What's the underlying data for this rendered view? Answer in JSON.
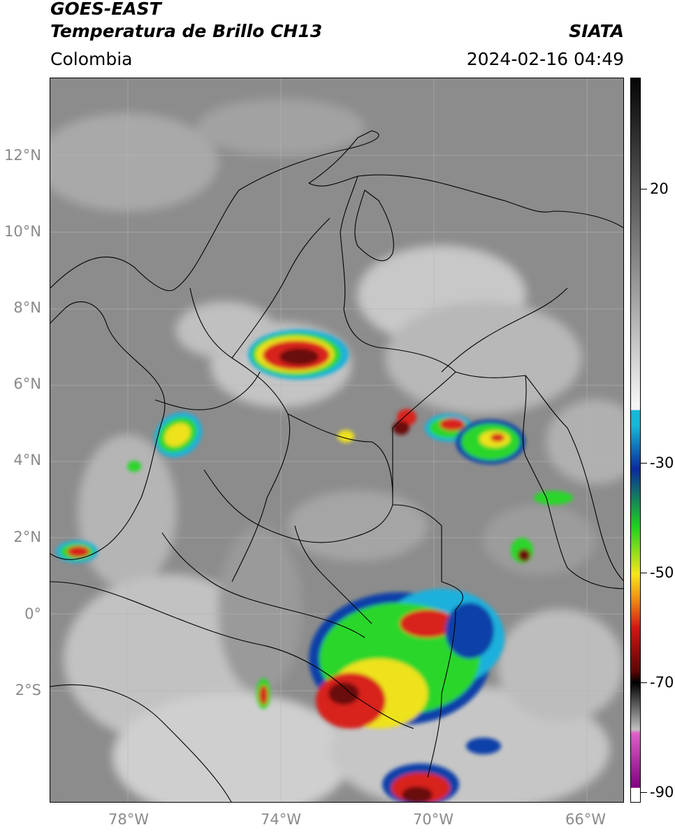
{
  "header": {
    "satellite": "GOES-EAST",
    "product": "Temperatura de Brillo CH13",
    "brand": "SIATA",
    "region": "Colombia",
    "datetime": "2024-02-16 04:49"
  },
  "map_axes": {
    "lat_labels": [
      {
        "text": "12°N",
        "lat": 12
      },
      {
        "text": "10°N",
        "lat": 10
      },
      {
        "text": "8°N",
        "lat": 8
      },
      {
        "text": "6°N",
        "lat": 6
      },
      {
        "text": "4°N",
        "lat": 4
      },
      {
        "text": "2°N",
        "lat": 2
      },
      {
        "text": "0°",
        "lat": 0
      },
      {
        "text": "2°S",
        "lat": -2
      }
    ],
    "lon_labels": [
      {
        "text": "78°W",
        "lon": -78
      },
      {
        "text": "74°W",
        "lon": -74
      },
      {
        "text": "70°W",
        "lon": -70
      },
      {
        "text": "66°W",
        "lon": -66
      }
    ],
    "lon_range": [
      -80,
      -65
    ],
    "lat_range": [
      -4.8,
      14.2
    ],
    "gridlines": true
  },
  "colorbar": {
    "ticks": [
      {
        "text": "20",
        "value": 20
      },
      {
        "text": "-30",
        "value": -30
      },
      {
        "text": "-50",
        "value": -50
      },
      {
        "text": "-70",
        "value": -70
      },
      {
        "text": "-90",
        "value": -90
      }
    ],
    "value_range": [
      -92,
      26
    ],
    "colors": {
      "warm_top": "#050505",
      "gray_mid": "#a0a0a0",
      "white": "#f4f4f4",
      "cyan": "#16b8d8",
      "blue": "#0a2a9e",
      "green": "#1fd21f",
      "yellow": "#f5e61a",
      "orange": "#f08c14",
      "red": "#d21414",
      "darkred": "#5a0505",
      "pink": "#e060c8",
      "purple": "#800080"
    }
  },
  "storm_colors": {
    "cyan": "#1ab0dc",
    "blue": "#0d3fa8",
    "green": "#2bd62b",
    "yellow": "#eee21e",
    "orange": "#ee8a1a",
    "red": "#d8221a",
    "darkred": "#6a0808",
    "cloud": "#d6d6d6",
    "border": "#000000"
  }
}
